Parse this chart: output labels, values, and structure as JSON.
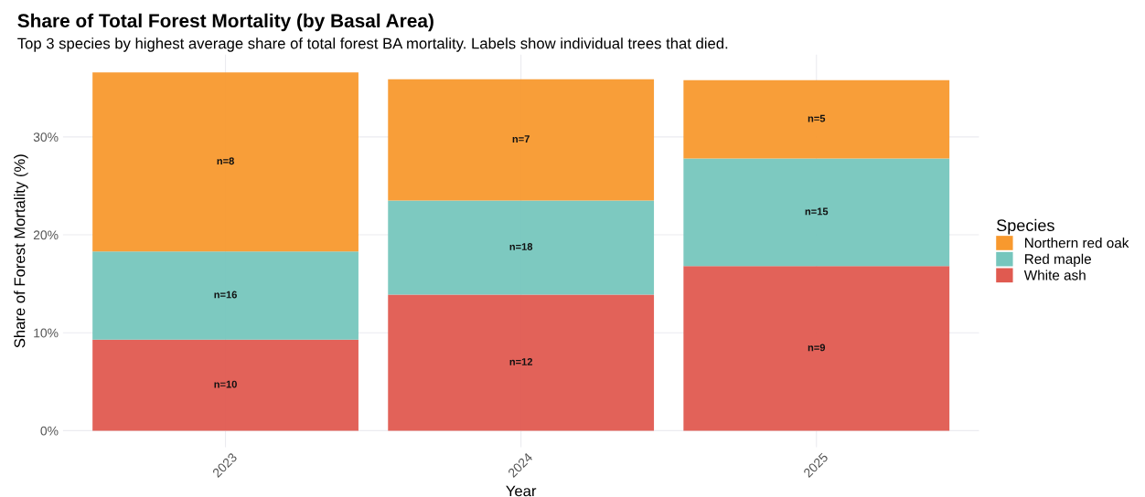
{
  "chart_data": {
    "type": "bar",
    "stacked": true,
    "title": "Share of Total Forest Mortality (by Basal Area)",
    "subtitle": "Top 3 species by highest average share of total forest BA mortality. Labels show individual trees that died.",
    "xlabel": "Year",
    "ylabel": "Share of Forest Mortality (%)",
    "legend_title": "Species",
    "categories": [
      "2023",
      "2024",
      "2025"
    ],
    "series": [
      {
        "name": "White ash",
        "color": "#e05a50",
        "values": [
          9.3,
          13.9,
          16.8
        ]
      },
      {
        "name": "Red maple",
        "color": "#76c6bd",
        "values": [
          9.0,
          9.6,
          11.0
        ]
      },
      {
        "name": "Northern red oak",
        "color": "#f8992e",
        "values": [
          18.3,
          12.4,
          8.0
        ]
      }
    ],
    "annotations": [
      "n=10",
      "n=12",
      "n=9",
      "n=16",
      "n=18",
      "n=15",
      "n=8",
      "n=7",
      "n=5"
    ],
    "ylim": [
      -1.7,
      38.4
    ],
    "yticks": [
      {
        "value": 0,
        "label": "0%"
      },
      {
        "value": 10,
        "label": "10%"
      },
      {
        "value": 20,
        "label": "20%"
      },
      {
        "value": 30,
        "label": "30%"
      }
    ],
    "grid": true,
    "legend": "right"
  }
}
